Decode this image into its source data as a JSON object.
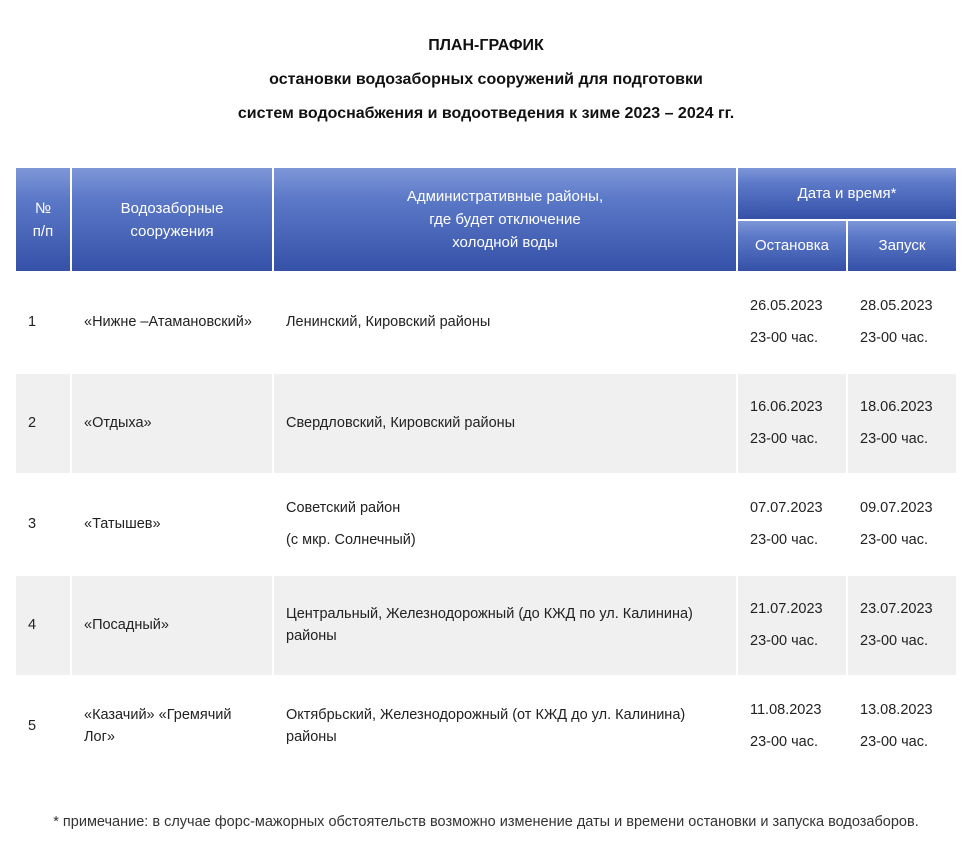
{
  "heading": {
    "line1": "ПЛАН-ГРАФИК",
    "line2": "остановки водозаборных сооружений для подготовки",
    "line3": "систем водоснабжения и водоотведения к зиме 2023 – 2024 гг."
  },
  "table": {
    "head": {
      "idx_l1": "№",
      "idx_l2": "п/п",
      "name_l1": "Водозаборные",
      "name_l2": "сооружения",
      "area_l1": "Административные районы,",
      "area_l2": "где будет отключение",
      "area_l3": "холодной воды",
      "dates_top": "Дата и время*",
      "stop": "Остановка",
      "start": "Запуск"
    },
    "header_style": {
      "grad_top": "#7e97d8",
      "grad_mid": "#5c79c8",
      "grad_bot": "#3551a8",
      "text_color": "#ffffff",
      "row_alt_bg": "#f0f0f0"
    },
    "rows": [
      {
        "idx": "1",
        "name": "«Нижне –Атамановский»",
        "area": "Ленинский, Кировский районы",
        "stop_date": "26.05.2023",
        "stop_time": "23-00 час.",
        "start_date": "28.05.2023",
        "start_time": "23-00 час."
      },
      {
        "idx": "2",
        "name": " «Отдыха»",
        "area": "Свердловский, Кировский районы",
        "stop_date": "16.06.2023",
        "stop_time": "23-00 час.",
        "start_date": "18.06.2023",
        "start_time": "23-00 час."
      },
      {
        "idx": "3",
        "name": "«Татышев»",
        "area_l1": "Советский район",
        "area_l2": "(с мкр. Солнечный)",
        "stop_date": "07.07.2023",
        "stop_time": "23-00 час.",
        "start_date": "09.07.2023",
        "start_time": "23-00 час."
      },
      {
        "idx": "4",
        "name": " «Посадный»",
        "area": "Центральный, Железнодорожный (до КЖД по ул. Калинина) районы",
        "stop_date": "21.07.2023",
        "stop_time": "23-00 час.",
        "start_date": "23.07.2023",
        "start_time": "23-00 час."
      },
      {
        "idx": "5",
        "name": "  «Казачий»    «Гремячий Лог»",
        "area": "Октябрьский, Железнодорожный (от КЖД до ул. Калинина) районы",
        "stop_date": "11.08.2023",
        "stop_time": "23-00 час.",
        "start_date": "13.08.2023",
        "start_time": "23-00 час."
      }
    ]
  },
  "footnote": "* примечание: в случае форс-мажорных обстоятельств возможно изменение даты и времени остановки и запуска водозаборов."
}
